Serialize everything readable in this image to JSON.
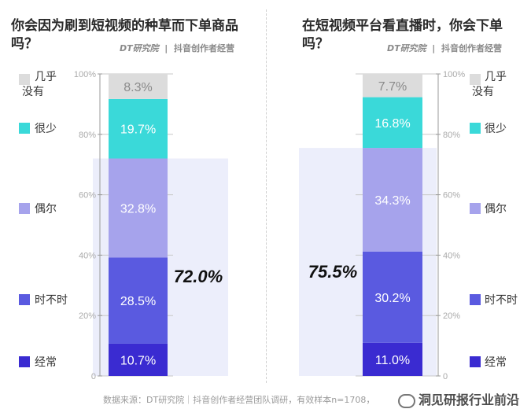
{
  "brand": {
    "dt": "DT研究院",
    "dy": "抖音创作者经营"
  },
  "footer": {
    "source": "数据来源：DT研究院｜抖音创作者经营团队调研，有效样本n=1708，"
  },
  "watermark": {
    "text": "洞见研报行业前沿"
  },
  "colors": {
    "grid": "#c8c8c8",
    "highlight": "#eceefb",
    "seg": [
      "#3a2bd1",
      "#5a5ae0",
      "#a6a3ec",
      "#3ad9d9",
      "#dcdcdc"
    ]
  },
  "chart_data": [
    {
      "type": "bar",
      "subtype": "stacked-100",
      "title": "你会因为刷到短视频的种草而下单商品吗？",
      "categories": [
        "经常",
        "时不时",
        "偶尔",
        "很少",
        "几乎没有"
      ],
      "values": [
        10.7,
        28.5,
        32.8,
        19.7,
        8.3
      ],
      "value_labels": [
        "10.7%",
        "28.5%",
        "32.8%",
        "19.7%",
        "8.3%"
      ],
      "highlight_value": "72.0%",
      "highlight_sum": 72.0,
      "ylim": [
        0,
        100
      ],
      "yticks": [
        "0",
        "20%",
        "40%",
        "60%",
        "80%",
        "100%"
      ],
      "legend_side": "left"
    },
    {
      "type": "bar",
      "subtype": "stacked-100",
      "title": "在短视频平台看直播时，你会下单吗？",
      "categories": [
        "经常",
        "时不时",
        "偶尔",
        "很少",
        "几乎没有"
      ],
      "values": [
        11.0,
        30.2,
        34.3,
        16.8,
        7.7
      ],
      "value_labels": [
        "11.0%",
        "30.2%",
        "34.3%",
        "16.8%",
        "7.7%"
      ],
      "highlight_value": "75.5%",
      "highlight_sum": 75.5,
      "ylim": [
        0,
        100
      ],
      "yticks": [
        "0",
        "20%",
        "40%",
        "60%",
        "80%",
        "100%"
      ],
      "legend_side": "right"
    }
  ]
}
